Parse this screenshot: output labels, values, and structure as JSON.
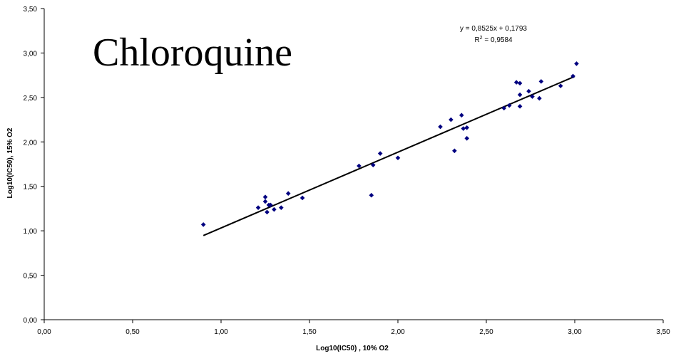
{
  "chart_data": {
    "type": "scatter",
    "title": "Chloroquine",
    "xlabel": "Log10(IC50) , 10% O2",
    "ylabel": "Log10(IC50), 15% O2",
    "xlim": [
      0,
      3.5
    ],
    "ylim": [
      0,
      3.5
    ],
    "xticks": [
      "0,00",
      "0,50",
      "1,00",
      "1,50",
      "2,00",
      "2,50",
      "3,00",
      "3,50"
    ],
    "yticks": [
      "0,00",
      "0,50",
      "1,00",
      "1,50",
      "2,00",
      "2,50",
      "3,00",
      "3,50"
    ],
    "grid": false,
    "legend": "none",
    "marker_color": "#000080",
    "trendline": {
      "slope": 0.8525,
      "intercept": 0.1793,
      "x_range": [
        0.9,
        3.0
      ],
      "equation": "y = 0,8525x + 0,1793",
      "r2_prefix": "R",
      "r2_sup": "2",
      "r2_suffix": " = 0,9584"
    },
    "points": [
      [
        0.9,
        1.07
      ],
      [
        1.21,
        1.26
      ],
      [
        1.25,
        1.38
      ],
      [
        1.25,
        1.33
      ],
      [
        1.26,
        1.21
      ],
      [
        1.27,
        1.29
      ],
      [
        1.28,
        1.29
      ],
      [
        1.3,
        1.24
      ],
      [
        1.34,
        1.26
      ],
      [
        1.38,
        1.42
      ],
      [
        1.46,
        1.37
      ],
      [
        1.78,
        1.73
      ],
      [
        1.85,
        1.4
      ],
      [
        1.86,
        1.74
      ],
      [
        1.9,
        1.87
      ],
      [
        2.0,
        1.82
      ],
      [
        2.24,
        2.17
      ],
      [
        2.3,
        2.25
      ],
      [
        2.32,
        1.9
      ],
      [
        2.36,
        2.3
      ],
      [
        2.37,
        2.15
      ],
      [
        2.39,
        2.16
      ],
      [
        2.39,
        2.04
      ],
      [
        2.6,
        2.38
      ],
      [
        2.63,
        2.41
      ],
      [
        2.67,
        2.67
      ],
      [
        2.69,
        2.66
      ],
      [
        2.69,
        2.53
      ],
      [
        2.69,
        2.4
      ],
      [
        2.74,
        2.57
      ],
      [
        2.76,
        2.51
      ],
      [
        2.8,
        2.49
      ],
      [
        2.81,
        2.68
      ],
      [
        2.92,
        2.63
      ],
      [
        2.99,
        2.74
      ],
      [
        3.01,
        2.88
      ]
    ]
  }
}
